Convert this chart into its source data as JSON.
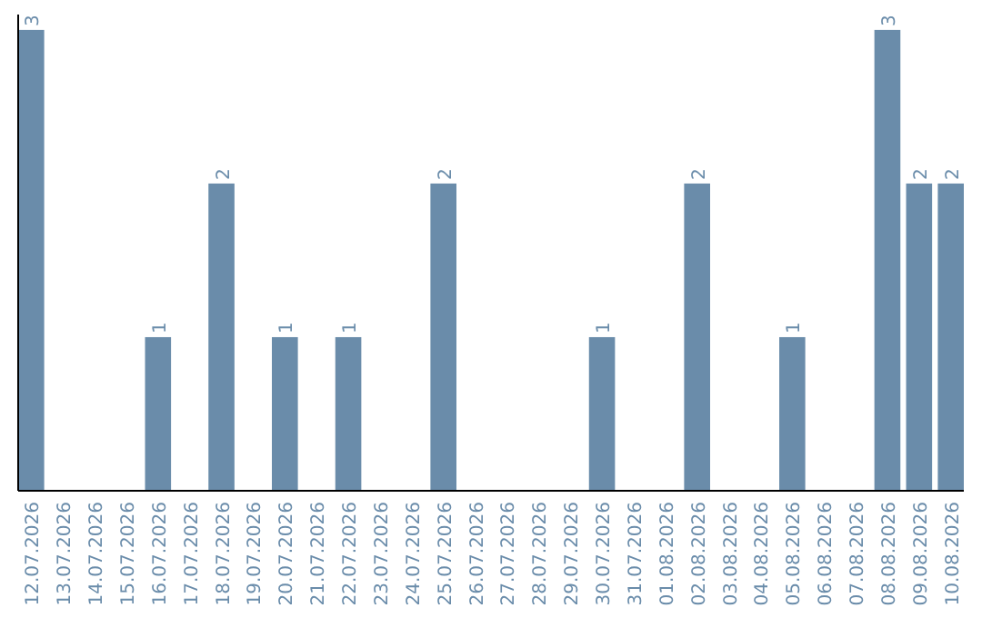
{
  "chart_data": {
    "type": "bar",
    "categories": [
      "12.07.2026",
      "13.07.2026",
      "14.07.2026",
      "15.07.2026",
      "16.07.2026",
      "17.07.2026",
      "18.07.2026",
      "19.07.2026",
      "20.07.2026",
      "21.07.2026",
      "22.07.2026",
      "23.07.2026",
      "24.07.2026",
      "25.07.2026",
      "26.07.2026",
      "27.07.2026",
      "28.07.2026",
      "29.07.2026",
      "30.07.2026",
      "31.07.2026",
      "01.08.2026",
      "02.08.2026",
      "03.08.2026",
      "04.08.2026",
      "05.08.2026",
      "06.08.2026",
      "07.08.2026",
      "08.08.2026",
      "09.08.2026",
      "10.08.2026"
    ],
    "values": [
      3,
      0,
      0,
      0,
      1,
      0,
      2,
      0,
      1,
      0,
      1,
      0,
      0,
      2,
      0,
      0,
      0,
      0,
      1,
      0,
      0,
      2,
      0,
      0,
      1,
      0,
      0,
      3,
      2,
      2
    ],
    "value_labels": [
      "3",
      null,
      null,
      null,
      "1",
      null,
      "2",
      null,
      "1",
      null,
      "1",
      null,
      null,
      "2",
      null,
      null,
      null,
      null,
      "1",
      null,
      null,
      "2",
      null,
      null,
      "1",
      null,
      null,
      "3",
      "2",
      "2"
    ],
    "color": "#6a8caa",
    "ylim": [
      0,
      3.1
    ],
    "tick_labels": "x"
  }
}
